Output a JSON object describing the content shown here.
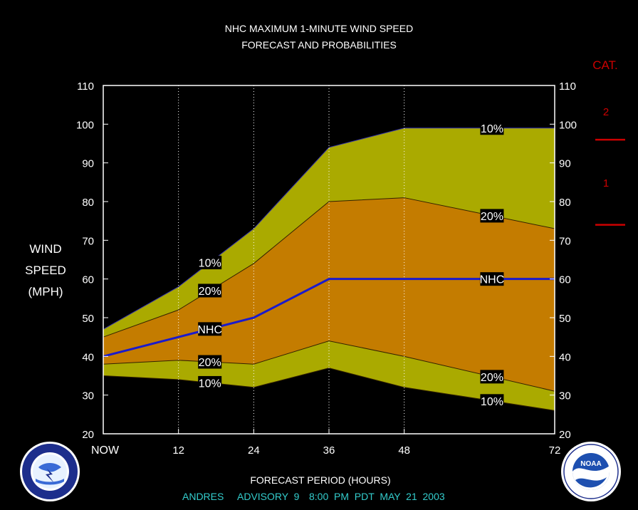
{
  "title_line1": "NHC MAXIMUM 1-MINUTE WIND SPEED",
  "title_line2": "FORECAST AND PROBABILITIES",
  "cat_header": "CAT.",
  "cat_labels": [
    "2",
    "1"
  ],
  "ylabel_lines": [
    "WIND",
    "SPEED",
    "(MPH)"
  ],
  "xlabel": "FORECAST PERIOD (HOURS)",
  "advisory": {
    "storm": "ANDRES",
    "advisory_text": "ADVISORY  9",
    "time": "8:00  PM  PDT  MAY  21  2003"
  },
  "logo_left": "national-weather-service-logo",
  "logo_right": "noaa-logo",
  "colors": {
    "band_10pct": "#aaaa00",
    "band_20pct": "#c47c00",
    "nhc_line": "#1a1acc",
    "text": "#ffffff",
    "category_marks": "#cc0000",
    "advisory_text": "#33cccc"
  },
  "chart_data": {
    "type": "area",
    "x_ticks": [
      "NOW",
      "12",
      "24",
      "36",
      "48",
      "72"
    ],
    "x": [
      0,
      12,
      24,
      36,
      48,
      72
    ],
    "xlim": [
      0,
      72
    ],
    "ylim": [
      20,
      110
    ],
    "y_ticks": [
      20,
      30,
      40,
      50,
      60,
      70,
      80,
      90,
      100,
      110
    ],
    "grid": "vertical dotted at 12, 24, 36, 48",
    "series": [
      {
        "name": "10%",
        "values": [
          47,
          58,
          73,
          94,
          99,
          99
        ],
        "label_at": 17
      },
      {
        "name": "20%",
        "values": [
          45,
          52,
          64,
          80,
          81,
          73
        ],
        "label_at": 17
      },
      {
        "name": "NHC",
        "values": [
          40,
          45,
          50,
          60,
          60,
          60
        ],
        "label_at": 17
      },
      {
        "name": "20%",
        "values": [
          38,
          39,
          38,
          44,
          40,
          31
        ],
        "label_at": 17
      },
      {
        "name": "10%",
        "values": [
          35,
          34,
          32,
          37,
          32,
          26
        ],
        "label_at": 17
      }
    ],
    "right_labels": [
      "10%",
      "20%",
      "NHC",
      "20%",
      "10%"
    ],
    "category_thresholds_mph": [
      74,
      96
    ]
  }
}
